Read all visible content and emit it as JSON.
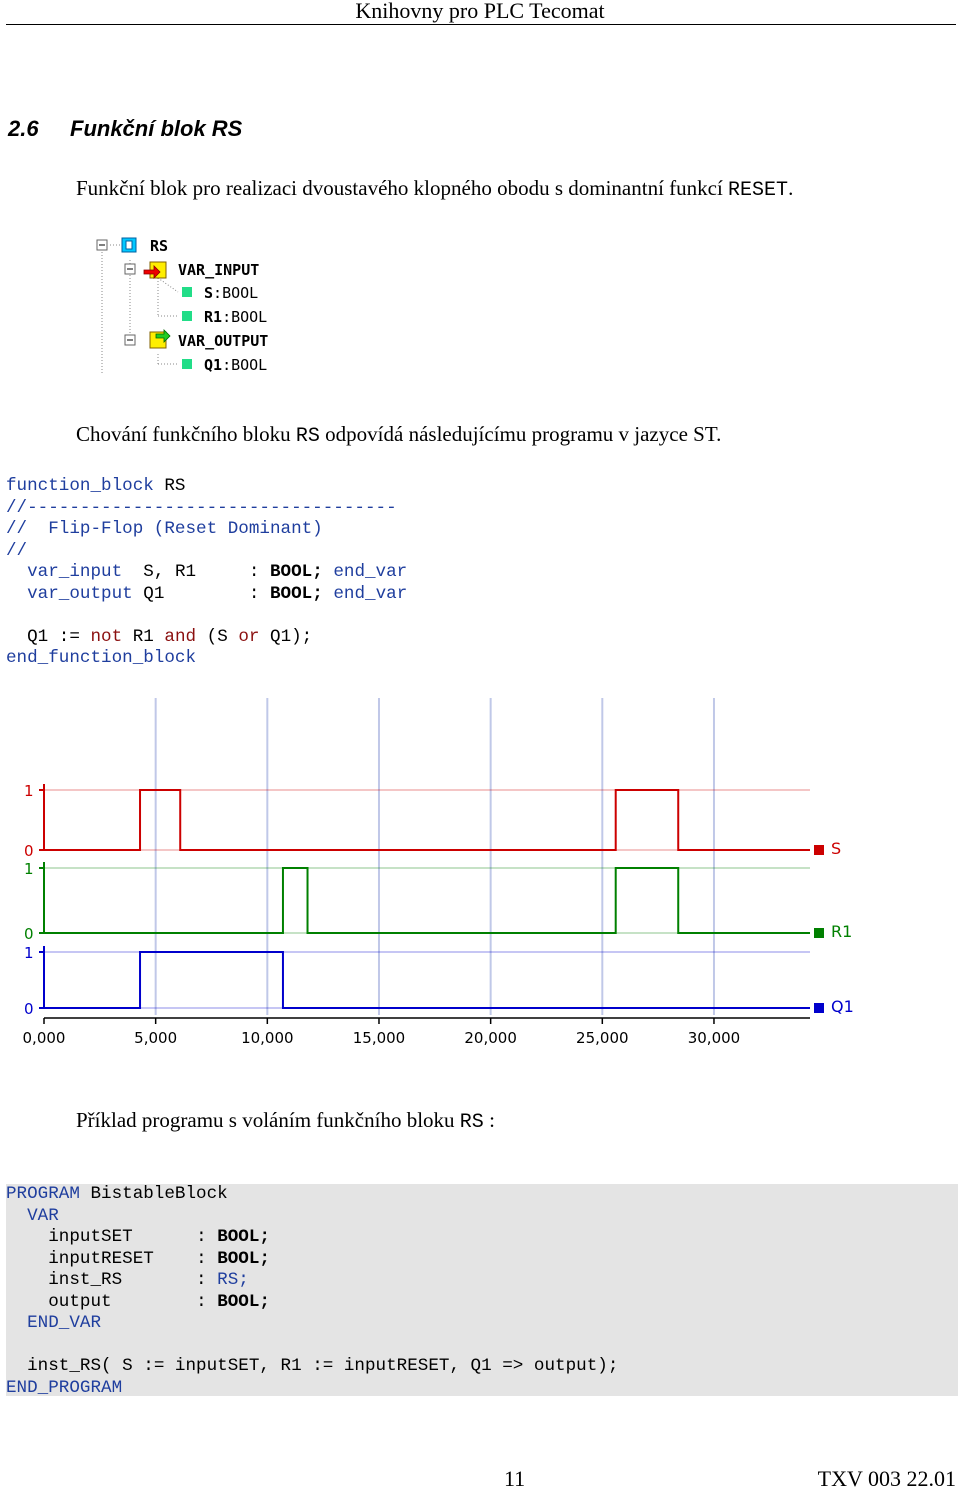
{
  "header": {
    "title": "Knihovny pro PLC Tecomat"
  },
  "section": {
    "number": "2.6",
    "title": "Funkční blok RS"
  },
  "intro": {
    "text": "Funkční blok pro realizaci dvoustavého klopného obodu s dominantní funkcí ",
    "code": "RESET",
    "end": "."
  },
  "tree": {
    "root": "RS",
    "inputs_label": "VAR_INPUT",
    "inputs": [
      {
        "name": "S",
        "type": "BOOL"
      },
      {
        "name": "R1",
        "type": "BOOL"
      }
    ],
    "outputs_label": "VAR_OUTPUT",
    "outputs": [
      {
        "name": "Q1",
        "type": "BOOL"
      }
    ]
  },
  "behavior": {
    "text": "Chování funkčního bloku ",
    "code": "RS",
    "end": " odpovídá následujícímu programu v jazyce ST."
  },
  "st_code": {
    "l1_kw": "function_block",
    "l1_name": " RS",
    "l2": "//-----------------------------------",
    "l3": "//  Flip-Flop (Reset Dominant)",
    "l4": "//",
    "l5_kw": "var_input",
    "l5_vars": "  S, R1",
    "l5_sep": "     : ",
    "l5_type": "BOOL;",
    "l5_end": "end_var",
    "l6_kw": "var_output",
    "l6_vars": " Q1",
    "l6_sep": "        : ",
    "l6_type": "BOOL;",
    "l6_end": "end_var",
    "l8_a": "Q1 := ",
    "l8_not": "not",
    "l8_b": " R1 ",
    "l8_and": "and",
    "l8_c": " (S ",
    "l8_or": "or",
    "l8_d": " Q1);",
    "l9": "end_function_block"
  },
  "chart_data": {
    "type": "line",
    "x_ticks": [
      "0,000",
      "5,000",
      "10,000",
      "15,000",
      "20,000",
      "25,000",
      "30,000"
    ],
    "xlim": [
      0,
      34.3
    ],
    "series": [
      {
        "name": "S",
        "color": "#cc0000",
        "steps": [
          [
            0,
            0
          ],
          [
            4.3,
            1
          ],
          [
            6.1,
            0
          ],
          [
            25.6,
            1
          ],
          [
            28.4,
            0
          ],
          [
            34.3,
            0
          ]
        ]
      },
      {
        "name": "R1",
        "color": "#008000",
        "steps": [
          [
            0,
            0
          ],
          [
            10.7,
            1
          ],
          [
            11.8,
            0
          ],
          [
            25.6,
            1
          ],
          [
            28.4,
            0
          ],
          [
            34.3,
            0
          ]
        ]
      },
      {
        "name": "Q1",
        "color": "#0000cc",
        "steps": [
          [
            0,
            0
          ],
          [
            4.3,
            1
          ],
          [
            10.7,
            0
          ],
          [
            34.3,
            0
          ]
        ]
      }
    ],
    "y_labels": {
      "high": "1",
      "low": "0"
    }
  },
  "example": {
    "text": "Příklad programu s voláním funkčního bloku ",
    "code": "RS",
    "end": " :"
  },
  "program": {
    "l1_kw": "PROGRAM",
    "l1_name": " BistableBlock",
    "l2_kw": "VAR",
    "v1_name": "inputSET",
    "v1_type": "BOOL;",
    "v2_name": "inputRESET",
    "v2_type": "BOOL;",
    "v3_name": "inst_RS",
    "v3_type": "RS;",
    "v4_name": "output",
    "v4_type": "BOOL;",
    "sep": ": ",
    "end_var": "END_VAR",
    "call": "inst_RS( S := inputSET, R1 := inputRESET, Q1 => output);",
    "end": "END_PROGRAM"
  },
  "footer": {
    "page": "11",
    "doc": "TXV 003 22.01"
  }
}
